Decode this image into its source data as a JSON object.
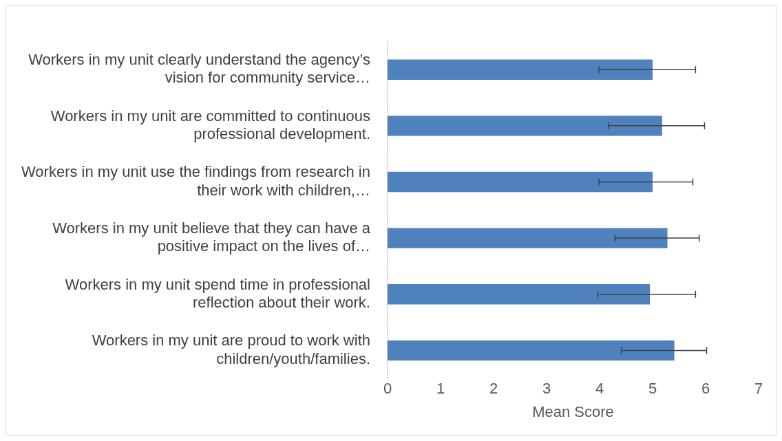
{
  "chart_data": {
    "type": "bar",
    "orientation": "horizontal",
    "xlabel": "Mean Score",
    "categories": [
      "Workers in my unit clearly understand the agency’s vision for community service…",
      "Workers in my unit are committed to continuous professional development.",
      "Workers in my unit use the findings from research in their work with children,…",
      "Workers in my unit believe that they can have a positive impact on the lives of…",
      "Workers in my unit spend time in professional reflection about their work.",
      "Workers in my unit are proud to work with children/youth/families."
    ],
    "values": [
      5.0,
      5.18,
      5.0,
      5.28,
      4.95,
      5.41
    ],
    "errors": [
      [
        3.99,
        5.81
      ],
      [
        4.17,
        5.98
      ],
      [
        3.99,
        5.76
      ],
      [
        4.29,
        5.88
      ],
      [
        3.96,
        5.81
      ],
      [
        4.41,
        6.02
      ]
    ],
    "color": "#4f81bd",
    "xlim": [
      0,
      7
    ],
    "xticks": [
      0,
      1,
      2,
      3,
      4,
      5,
      6,
      7
    ],
    "grid": false,
    "legend": false
  }
}
